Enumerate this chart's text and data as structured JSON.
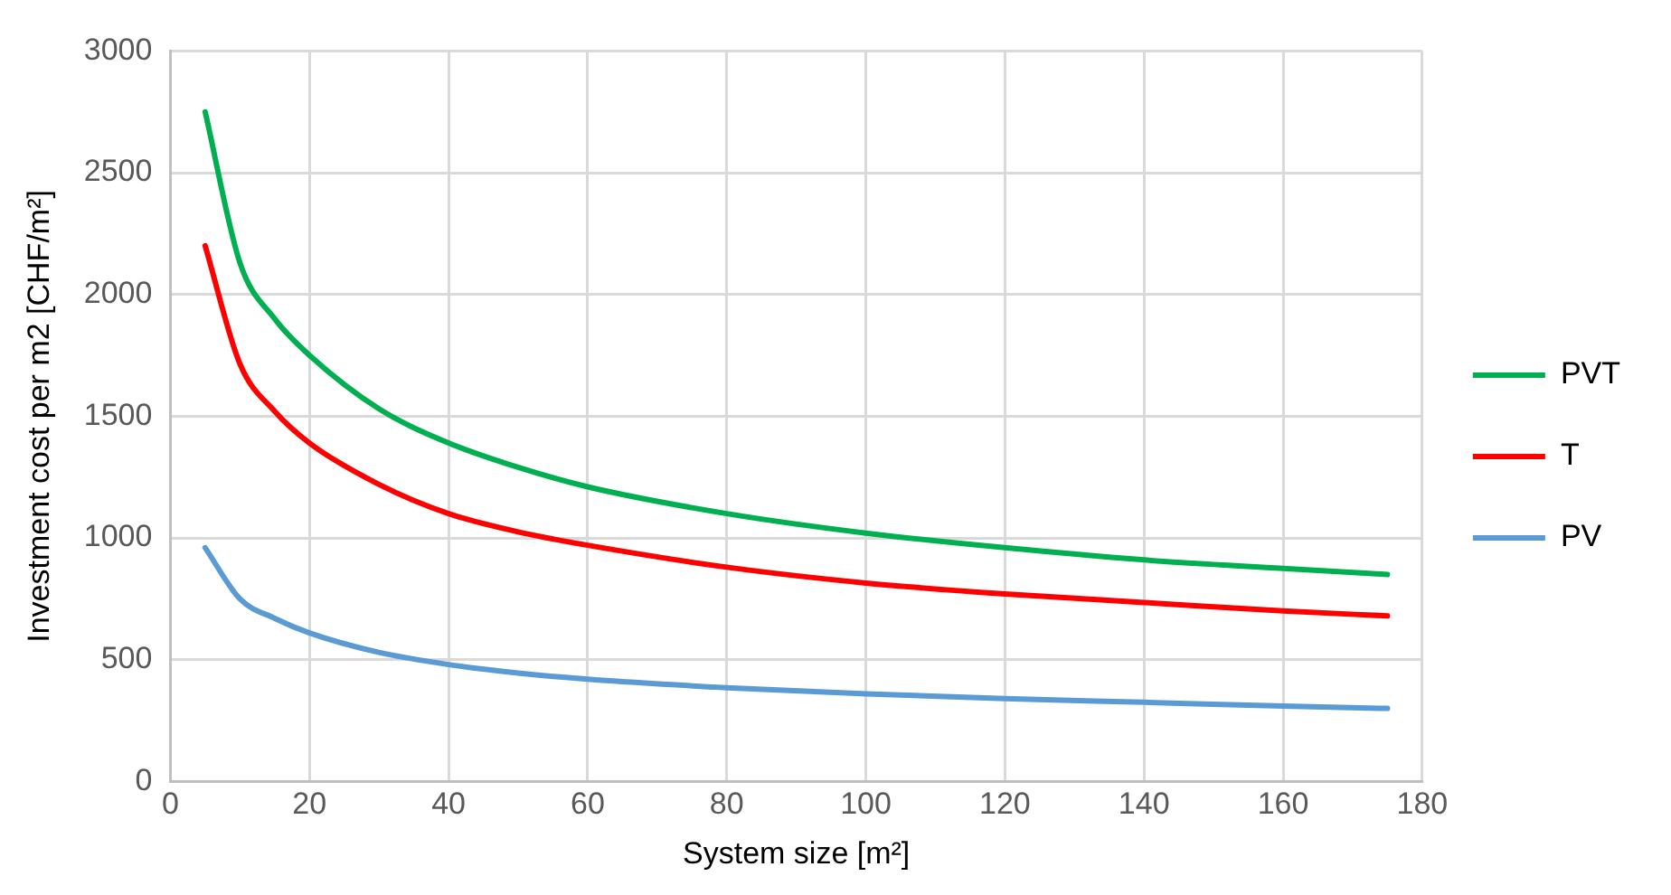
{
  "chart_data": {
    "type": "line",
    "xlabel": "System size [m²]",
    "ylabel": "Investment cost per m2 [CHF/m²]",
    "xlim": [
      0,
      180
    ],
    "xticks": [
      0,
      20,
      40,
      60,
      80,
      100,
      120,
      140,
      160,
      180
    ],
    "ylim": [
      0,
      3000
    ],
    "yticks": [
      0,
      500,
      1000,
      1500,
      2000,
      2500,
      3000
    ],
    "grid": true,
    "legend": "right",
    "marker": "none",
    "line_style": "solid",
    "x": [
      5,
      10,
      15,
      20,
      30,
      40,
      50,
      60,
      80,
      100,
      120,
      140,
      160,
      175
    ],
    "series": [
      {
        "name": "PVT",
        "color": "#00b050",
        "values": [
          2750,
          2130,
          1900,
          1750,
          1530,
          1390,
          1290,
          1210,
          1100,
          1020,
          960,
          910,
          875,
          850
        ]
      },
      {
        "name": "T",
        "color": "#ff0000",
        "values": [
          2200,
          1715,
          1520,
          1390,
          1220,
          1100,
          1025,
          970,
          880,
          815,
          770,
          735,
          700,
          680
        ]
      },
      {
        "name": "PV",
        "color": "#5b9bd5",
        "values": [
          960,
          750,
          670,
          610,
          530,
          480,
          445,
          420,
          385,
          360,
          340,
          325,
          310,
          300
        ]
      }
    ]
  }
}
